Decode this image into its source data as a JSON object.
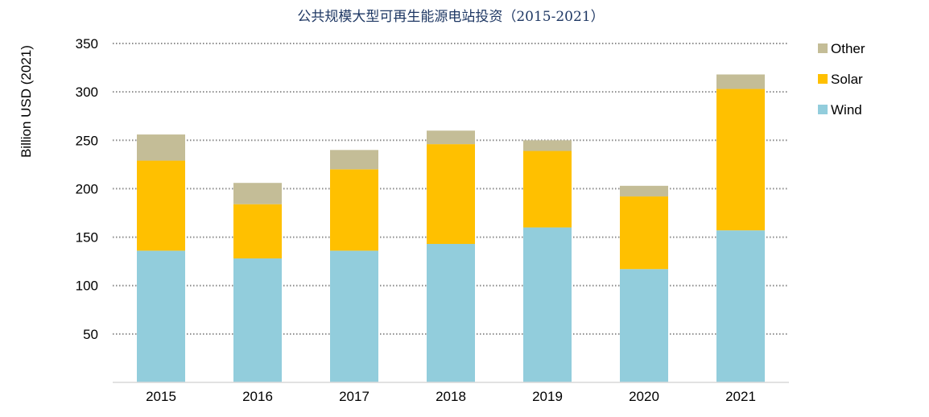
{
  "chart_data": {
    "type": "bar",
    "stacked": true,
    "title": "公共规模大型可再生能源电站投资（2015-2021）",
    "ylabel": "Billion USD (2021)",
    "xlabel": "",
    "categories": [
      "2015",
      "2016",
      "2017",
      "2018",
      "2019",
      "2020",
      "2021"
    ],
    "series": [
      {
        "name": "Wind",
        "color": "#92cddc",
        "values": [
          136,
          128,
          136,
          143,
          160,
          117,
          157
        ]
      },
      {
        "name": "Solar",
        "color": "#ffc000",
        "values": [
          93,
          56,
          84,
          103,
          79,
          75,
          146
        ]
      },
      {
        "name": "Other",
        "color": "#c4bd97",
        "values": [
          27,
          22,
          20,
          14,
          11,
          11,
          15
        ]
      }
    ],
    "ylim": [
      0,
      350
    ],
    "yticks": [
      50,
      100,
      150,
      200,
      250,
      300,
      350
    ],
    "grid": true,
    "legend_position": "right",
    "legend_order": [
      "Other",
      "Solar",
      "Wind"
    ]
  }
}
